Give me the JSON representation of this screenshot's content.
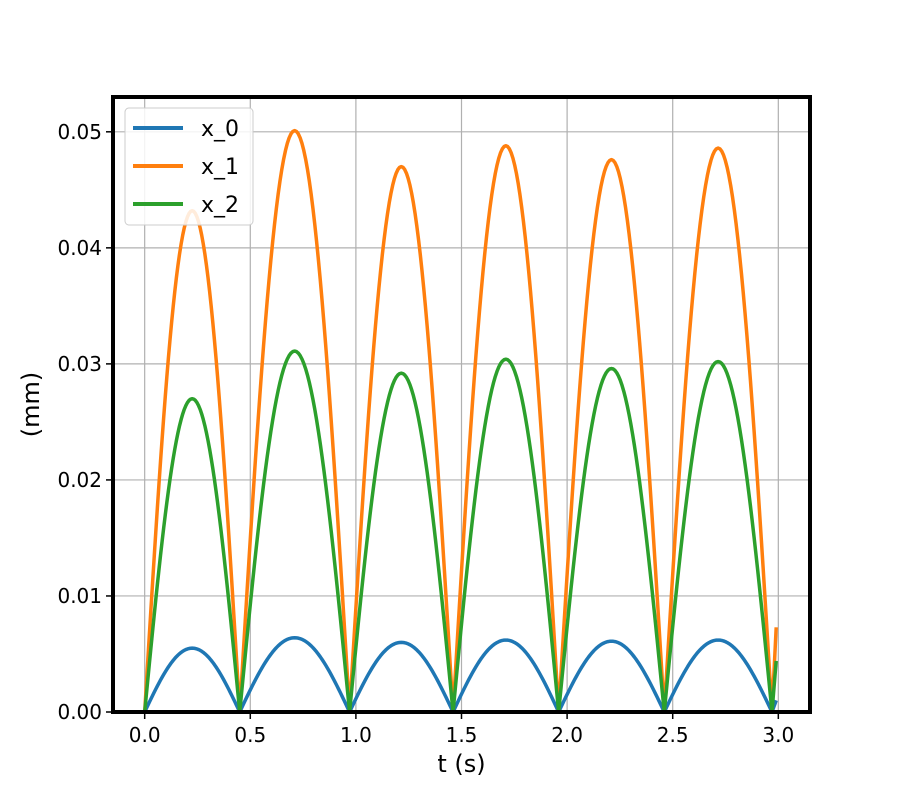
{
  "chart_data": {
    "type": "line",
    "title": "",
    "xlabel": "t (s)",
    "ylabel": "(mm)",
    "xlim": [
      -0.15,
      3.15
    ],
    "ylim": [
      0.0,
      0.053
    ],
    "x_ticks": [
      0.0,
      0.5,
      1.0,
      1.5,
      2.0,
      2.5,
      3.0
    ],
    "x_tick_labels": [
      "0.0",
      "0.5",
      "1.0",
      "1.5",
      "2.0",
      "2.5",
      "3.0"
    ],
    "y_ticks": [
      0.0,
      0.01,
      0.02,
      0.03,
      0.04,
      0.05
    ],
    "y_tick_labels": [
      "0.00",
      "0.01",
      "0.02",
      "0.03",
      "0.04",
      "0.05"
    ],
    "grid": true,
    "legend_position": "top-left",
    "colors": {
      "x_0": "#1f77b4",
      "x_1": "#ff7f0e",
      "x_2": "#2ca02c"
    },
    "arch_zeros": [
      0.0,
      0.45,
      0.97,
      1.46,
      1.96,
      2.46,
      2.97
    ],
    "end_x": 2.99,
    "series": [
      {
        "name": "x_0",
        "peaks": [
          0.0055,
          0.0064,
          0.006,
          0.0062,
          0.0061,
          0.0062
        ],
        "end_value": 0.001
      },
      {
        "name": "x_1",
        "peaks": [
          0.0432,
          0.0501,
          0.047,
          0.0488,
          0.0476,
          0.0486
        ],
        "end_value": 0.0073
      },
      {
        "name": "x_2",
        "peaks": [
          0.027,
          0.0311,
          0.0292,
          0.0304,
          0.0296,
          0.0302
        ],
        "end_value": 0.0044
      }
    ]
  }
}
